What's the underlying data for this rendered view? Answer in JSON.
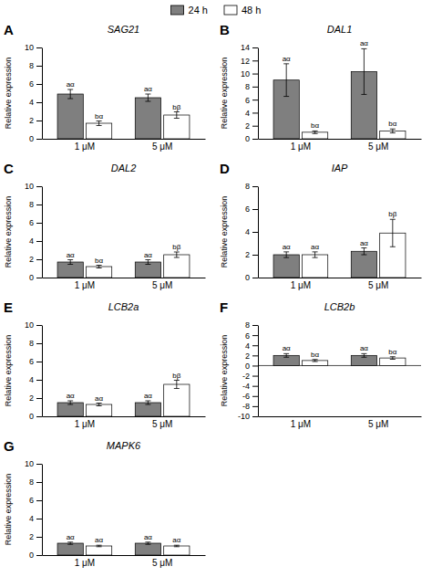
{
  "chart_data": [
    {
      "type": "bar",
      "label": "A",
      "title": "SAG21",
      "ylabel": "Relative expression",
      "categories": [
        "1 μM",
        "5 μM"
      ],
      "series": [
        {
          "name": "24 h",
          "color": "#7f7f7f",
          "values": [
            4.9,
            4.5
          ],
          "errors": [
            0.5,
            0.4
          ],
          "annotations": [
            "aα",
            "aα"
          ]
        },
        {
          "name": "48 h",
          "color": "#ffffff",
          "values": [
            1.7,
            2.6
          ],
          "errors": [
            0.25,
            0.35
          ],
          "annotations": [
            "bα",
            "bβ"
          ]
        }
      ],
      "ylim": [
        0,
        10
      ],
      "yticks": [
        0,
        2,
        4,
        6,
        8,
        10
      ],
      "legend": "top"
    },
    {
      "type": "bar",
      "label": "B",
      "title": "DAL1",
      "ylabel": "Relative expression",
      "categories": [
        "1 μM",
        "5 μM"
      ],
      "series": [
        {
          "name": "24 h",
          "color": "#7f7f7f",
          "values": [
            9.0,
            10.3
          ],
          "errors": [
            2.5,
            3.5
          ],
          "annotations": [
            "aα",
            "aα"
          ]
        },
        {
          "name": "48 h",
          "color": "#ffffff",
          "values": [
            1.0,
            1.2
          ],
          "errors": [
            0.2,
            0.3
          ],
          "annotations": [
            "bα",
            "bα"
          ]
        }
      ],
      "ylim": [
        0,
        14
      ],
      "yticks": [
        0,
        2,
        4,
        6,
        8,
        10,
        12,
        14
      ]
    },
    {
      "type": "bar",
      "label": "C",
      "title": "DAL2",
      "ylabel": "Relative expression",
      "categories": [
        "1 μM",
        "5 μM"
      ],
      "series": [
        {
          "name": "24 h",
          "color": "#7f7f7f",
          "values": [
            1.7,
            1.7
          ],
          "errors": [
            0.25,
            0.25
          ],
          "annotations": [
            "aα",
            "aα"
          ]
        },
        {
          "name": "48 h",
          "color": "#ffffff",
          "values": [
            1.2,
            2.5
          ],
          "errors": [
            0.15,
            0.3
          ],
          "annotations": [
            "bα",
            "bβ"
          ]
        }
      ],
      "ylim": [
        0,
        10
      ],
      "yticks": [
        0,
        2,
        4,
        6,
        8,
        10
      ]
    },
    {
      "type": "bar",
      "label": "D",
      "title": "IAP",
      "ylabel": "Relative expression",
      "categories": [
        "1 μM",
        "5 μM"
      ],
      "series": [
        {
          "name": "24 h",
          "color": "#7f7f7f",
          "values": [
            2.0,
            2.3
          ],
          "errors": [
            0.25,
            0.3
          ],
          "annotations": [
            "aα",
            "aα"
          ]
        },
        {
          "name": "48 h",
          "color": "#ffffff",
          "values": [
            2.0,
            3.9
          ],
          "errors": [
            0.25,
            1.2
          ],
          "annotations": [
            "aα",
            "bβ"
          ]
        }
      ],
      "ylim": [
        0,
        8
      ],
      "yticks": [
        0,
        2,
        4,
        6,
        8
      ]
    },
    {
      "type": "bar",
      "label": "E",
      "title": "LCB2a",
      "ylabel": "Relative expression",
      "categories": [
        "1 μM",
        "5 μM"
      ],
      "series": [
        {
          "name": "24 h",
          "color": "#7f7f7f",
          "values": [
            1.5,
            1.5
          ],
          "errors": [
            0.2,
            0.2
          ],
          "annotations": [
            "aα",
            "aα"
          ]
        },
        {
          "name": "48 h",
          "color": "#ffffff",
          "values": [
            1.3,
            3.5
          ],
          "errors": [
            0.15,
            0.45
          ],
          "annotations": [
            "aα",
            "bβ"
          ]
        }
      ],
      "ylim": [
        0,
        10
      ],
      "yticks": [
        0,
        2,
        4,
        6,
        8,
        10
      ]
    },
    {
      "type": "bar",
      "label": "F",
      "title": "LCB2b",
      "ylabel": "Relative expression",
      "categories": [
        "1 μM",
        "5 μM"
      ],
      "series": [
        {
          "name": "24 h",
          "color": "#7f7f7f",
          "values": [
            2.0,
            2.0
          ],
          "errors": [
            0.35,
            0.35
          ],
          "annotations": [
            "aα",
            "aα"
          ]
        },
        {
          "name": "48 h",
          "color": "#ffffff",
          "values": [
            1.0,
            1.5
          ],
          "errors": [
            0.2,
            0.25
          ],
          "annotations": [
            "bα",
            "bα"
          ]
        }
      ],
      "ylim": [
        -10,
        8
      ],
      "yticks": [
        -10,
        -8,
        -6,
        -4,
        -2,
        0,
        2,
        4,
        6,
        8
      ]
    },
    {
      "type": "bar",
      "label": "G",
      "title": "MAPK6",
      "ylabel": "Relative expression",
      "categories": [
        "1 μM",
        "5 μM"
      ],
      "series": [
        {
          "name": "24 h",
          "color": "#7f7f7f",
          "values": [
            1.3,
            1.3
          ],
          "errors": [
            0.12,
            0.12
          ],
          "annotations": [
            "aα",
            "aα"
          ]
        },
        {
          "name": "48 h",
          "color": "#ffffff",
          "values": [
            1.0,
            1.0
          ],
          "errors": [
            0.08,
            0.08
          ],
          "annotations": [
            "aα",
            "aα"
          ]
        }
      ],
      "ylim": [
        0,
        10
      ],
      "yticks": [
        0,
        2,
        4,
        6,
        8,
        10
      ]
    }
  ]
}
